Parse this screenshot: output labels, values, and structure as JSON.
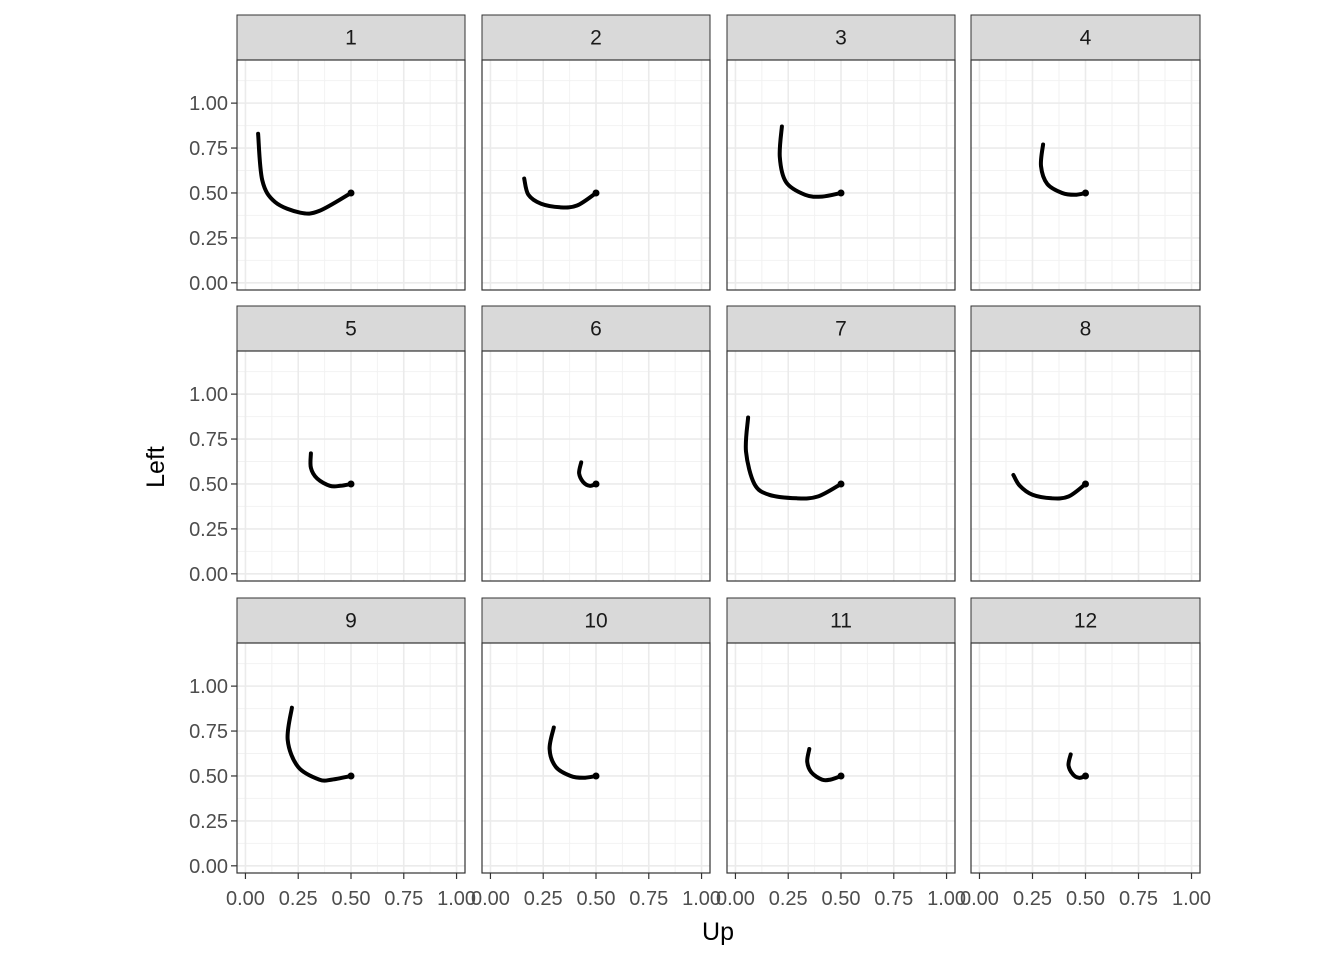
{
  "chart_data": {
    "type": "line",
    "layout": "facet_wrap",
    "xlabel": "Up",
    "ylabel": "Left",
    "xlim": [
      -0.04,
      1.04
    ],
    "ylim": [
      -0.04,
      1.24
    ],
    "x_ticks": [
      "0.00",
      "0.25",
      "0.50",
      "0.75",
      "1.00"
    ],
    "y_ticks": [
      "0.00",
      "0.25",
      "0.50",
      "0.75",
      "1.00"
    ],
    "grid": true,
    "line_color": "#000000",
    "panels": [
      {
        "label": "1",
        "x": [
          0.5,
          0.35,
          0.26,
          0.14,
          0.08,
          0.06
        ],
        "y": [
          0.5,
          0.4,
          0.39,
          0.45,
          0.57,
          0.83
        ]
      },
      {
        "label": "2",
        "x": [
          0.5,
          0.41,
          0.33,
          0.24,
          0.18,
          0.16
        ],
        "y": [
          0.5,
          0.43,
          0.42,
          0.44,
          0.49,
          0.58
        ]
      },
      {
        "label": "3",
        "x": [
          0.5,
          0.41,
          0.33,
          0.24,
          0.21,
          0.22
        ],
        "y": [
          0.5,
          0.48,
          0.49,
          0.56,
          0.7,
          0.87
        ]
      },
      {
        "label": "4",
        "x": [
          0.5,
          0.45,
          0.39,
          0.32,
          0.29,
          0.3
        ],
        "y": [
          0.5,
          0.49,
          0.5,
          0.55,
          0.65,
          0.77
        ]
      },
      {
        "label": "5",
        "x": [
          0.5,
          0.45,
          0.4,
          0.34,
          0.31,
          0.31
        ],
        "y": [
          0.5,
          0.49,
          0.49,
          0.53,
          0.59,
          0.67
        ]
      },
      {
        "label": "6",
        "x": [
          0.5,
          0.47,
          0.44,
          0.42,
          0.43
        ],
        "y": [
          0.5,
          0.49,
          0.51,
          0.56,
          0.62
        ]
      },
      {
        "label": "7",
        "x": [
          0.5,
          0.39,
          0.29,
          0.16,
          0.09,
          0.05,
          0.06
        ],
        "y": [
          0.5,
          0.43,
          0.42,
          0.44,
          0.5,
          0.68,
          0.87
        ]
      },
      {
        "label": "8",
        "x": [
          0.5,
          0.42,
          0.34,
          0.25,
          0.19,
          0.16
        ],
        "y": [
          0.5,
          0.43,
          0.42,
          0.44,
          0.49,
          0.55
        ]
      },
      {
        "label": "9",
        "x": [
          0.5,
          0.41,
          0.35,
          0.25,
          0.2,
          0.22
        ],
        "y": [
          0.5,
          0.48,
          0.48,
          0.55,
          0.7,
          0.88
        ]
      },
      {
        "label": "10",
        "x": [
          0.5,
          0.44,
          0.38,
          0.31,
          0.28,
          0.3
        ],
        "y": [
          0.5,
          0.49,
          0.5,
          0.55,
          0.65,
          0.77
        ]
      },
      {
        "label": "11",
        "x": [
          0.5,
          0.45,
          0.41,
          0.36,
          0.34,
          0.35
        ],
        "y": [
          0.5,
          0.48,
          0.48,
          0.52,
          0.58,
          0.65
        ]
      },
      {
        "label": "12",
        "x": [
          0.5,
          0.47,
          0.44,
          0.42,
          0.43
        ],
        "y": [
          0.5,
          0.49,
          0.51,
          0.56,
          0.62
        ]
      }
    ]
  }
}
